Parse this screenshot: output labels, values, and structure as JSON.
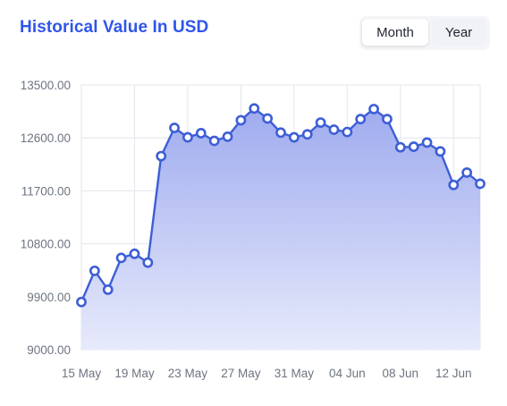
{
  "header": {
    "title": "Historical Value In USD",
    "toggle": {
      "month_label": "Month",
      "year_label": "Year",
      "selected": "Month"
    }
  },
  "colors": {
    "title": "#2f56e9",
    "line": "#3d5ed6",
    "area_top": "#9aa7ee",
    "area_bottom": "#e6e9fb",
    "grid": "#e3e5ec"
  },
  "chart_data": {
    "type": "area",
    "title": "Historical Value In USD",
    "xlabel": "",
    "ylabel": "",
    "ylim": [
      9000,
      13500
    ],
    "yticks": [
      "13500.00",
      "12600.00",
      "11700.00",
      "10800.00",
      "9900.00",
      "9000.00"
    ],
    "xticks": [
      "15 May",
      "19 May",
      "23 May",
      "27 May",
      "31 May",
      "04 Jun",
      "08 Jun",
      "12 Jun"
    ],
    "grid": true,
    "series": [
      {
        "values": [
          9810,
          10340,
          10020,
          10560,
          10630,
          10480,
          12290,
          12770,
          12610,
          12680,
          12550,
          12620,
          12900,
          13100,
          12930,
          12690,
          12610,
          12660,
          12860,
          12740,
          12700,
          12920,
          13090,
          12920,
          12440,
          12450,
          12520,
          12370,
          11800,
          12010,
          11820
        ]
      }
    ]
  }
}
